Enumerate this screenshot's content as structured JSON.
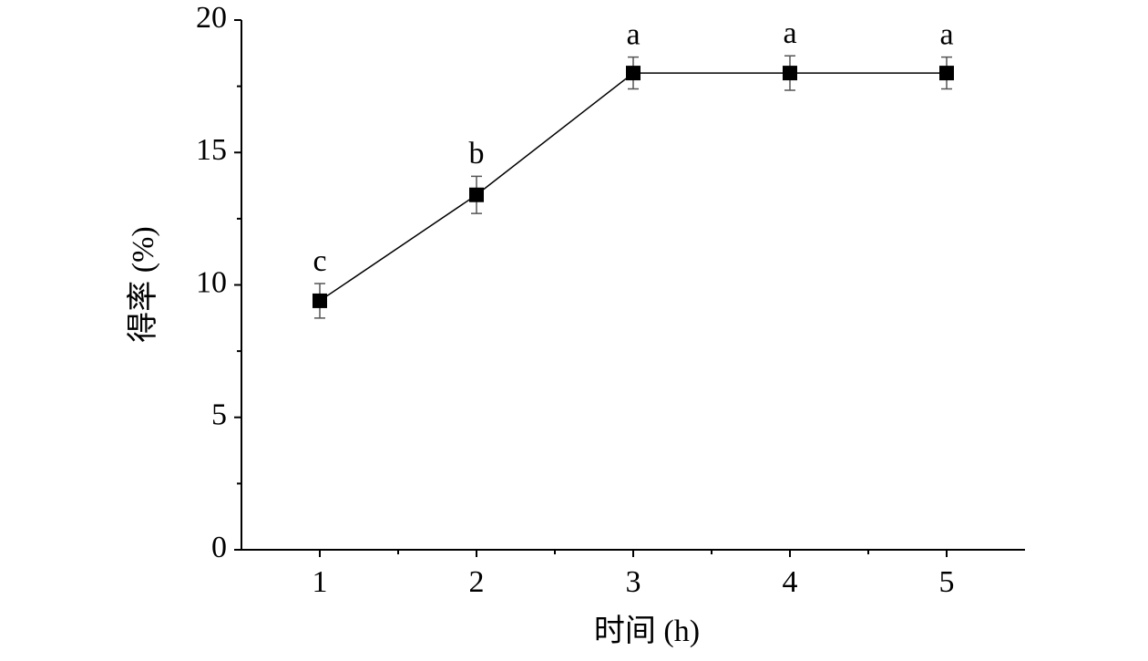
{
  "chart_data": {
    "type": "line",
    "x_label": "时间 (h)",
    "y_label": "得率 (%)",
    "x": [
      1,
      2,
      3,
      4,
      5
    ],
    "values": [
      9.4,
      13.4,
      18.0,
      18.0,
      18.0
    ],
    "errors": [
      0.65,
      0.7,
      0.6,
      0.65,
      0.6
    ],
    "point_labels": [
      "c",
      "b",
      "a",
      "a",
      "a"
    ],
    "color": "#000000",
    "xlim": [
      0.5,
      5.5
    ],
    "xticks": [
      1,
      2,
      3,
      4,
      5
    ],
    "x_minor_ticks": [
      1.5,
      2.5,
      3.5,
      4.5
    ],
    "ylim": [
      0,
      20
    ],
    "yticks": [
      0,
      5,
      10,
      15,
      20
    ],
    "y_minor_ticks": [
      2.5,
      7.5,
      12.5,
      17.5
    ],
    "grid": false
  }
}
